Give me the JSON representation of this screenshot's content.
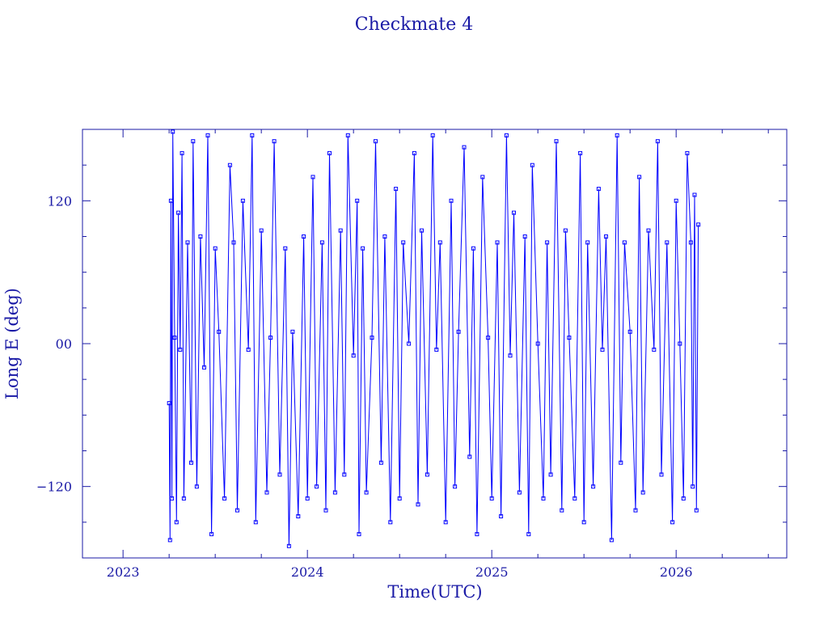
{
  "chart_data": {
    "type": "line",
    "title": "Checkmate 4",
    "xlabel": "Time(UTC)",
    "ylabel": "Long E (deg)",
    "x_unit": "year",
    "xlim": [
      2022.78,
      2026.6
    ],
    "ylim": [
      -180,
      180
    ],
    "x_ticks": [
      {
        "value": 2023,
        "label": "2023"
      },
      {
        "value": 2024,
        "label": "2024"
      },
      {
        "value": 2025,
        "label": "2025"
      },
      {
        "value": 2026,
        "label": "2026"
      }
    ],
    "y_ticks": [
      {
        "value": 120,
        "label": "120"
      },
      {
        "value": 0,
        "label": "00"
      },
      {
        "value": -120,
        "label": "−120"
      }
    ],
    "grid": false,
    "marker": "square",
    "color": "#0000ff",
    "axis_color": "#1a1aa6",
    "series": [
      {
        "points": [
          [
            2023.25,
            -50
          ],
          [
            2023.255,
            -165
          ],
          [
            2023.26,
            120
          ],
          [
            2023.265,
            -130
          ],
          [
            2023.27,
            178
          ],
          [
            2023.28,
            5
          ],
          [
            2023.29,
            -150
          ],
          [
            2023.3,
            110
          ],
          [
            2023.31,
            -5
          ],
          [
            2023.32,
            160
          ],
          [
            2023.33,
            -130
          ],
          [
            2023.35,
            85
          ],
          [
            2023.37,
            -100
          ],
          [
            2023.38,
            170
          ],
          [
            2023.4,
            -120
          ],
          [
            2023.42,
            90
          ],
          [
            2023.44,
            -20
          ],
          [
            2023.46,
            175
          ],
          [
            2023.48,
            -160
          ],
          [
            2023.5,
            80
          ],
          [
            2023.52,
            10
          ],
          [
            2023.55,
            -130
          ],
          [
            2023.58,
            150
          ],
          [
            2023.6,
            85
          ],
          [
            2023.62,
            -140
          ],
          [
            2023.65,
            120
          ],
          [
            2023.68,
            -5
          ],
          [
            2023.7,
            175
          ],
          [
            2023.72,
            -150
          ],
          [
            2023.75,
            95
          ],
          [
            2023.78,
            -125
          ],
          [
            2023.8,
            5
          ],
          [
            2023.82,
            170
          ],
          [
            2023.85,
            -110
          ],
          [
            2023.88,
            80
          ],
          [
            2023.9,
            -170
          ],
          [
            2023.92,
            10
          ],
          [
            2023.95,
            -145
          ],
          [
            2023.98,
            90
          ],
          [
            2024.0,
            -130
          ],
          [
            2024.03,
            140
          ],
          [
            2024.05,
            -120
          ],
          [
            2024.08,
            85
          ],
          [
            2024.1,
            -140
          ],
          [
            2024.12,
            160
          ],
          [
            2024.15,
            -125
          ],
          [
            2024.18,
            95
          ],
          [
            2024.2,
            -110
          ],
          [
            2024.22,
            175
          ],
          [
            2024.25,
            -10
          ],
          [
            2024.27,
            120
          ],
          [
            2024.28,
            -160
          ],
          [
            2024.3,
            80
          ],
          [
            2024.32,
            -125
          ],
          [
            2024.35,
            5
          ],
          [
            2024.37,
            170
          ],
          [
            2024.4,
            -100
          ],
          [
            2024.42,
            90
          ],
          [
            2024.45,
            -150
          ],
          [
            2024.48,
            130
          ],
          [
            2024.5,
            -130
          ],
          [
            2024.52,
            85
          ],
          [
            2024.55,
            0
          ],
          [
            2024.58,
            160
          ],
          [
            2024.6,
            -135
          ],
          [
            2024.62,
            95
          ],
          [
            2024.65,
            -110
          ],
          [
            2024.68,
            175
          ],
          [
            2024.7,
            -5
          ],
          [
            2024.72,
            85
          ],
          [
            2024.75,
            -150
          ],
          [
            2024.78,
            120
          ],
          [
            2024.8,
            -120
          ],
          [
            2024.82,
            10
          ],
          [
            2024.85,
            165
          ],
          [
            2024.88,
            -95
          ],
          [
            2024.9,
            80
          ],
          [
            2024.92,
            -160
          ],
          [
            2024.95,
            140
          ],
          [
            2024.98,
            5
          ],
          [
            2025.0,
            -130
          ],
          [
            2025.03,
            85
          ],
          [
            2025.05,
            -145
          ],
          [
            2025.08,
            175
          ],
          [
            2025.1,
            -10
          ],
          [
            2025.12,
            110
          ],
          [
            2025.15,
            -125
          ],
          [
            2025.18,
            90
          ],
          [
            2025.2,
            -160
          ],
          [
            2025.22,
            150
          ],
          [
            2025.25,
            0
          ],
          [
            2025.28,
            -130
          ],
          [
            2025.3,
            85
          ],
          [
            2025.32,
            -110
          ],
          [
            2025.35,
            170
          ],
          [
            2025.38,
            -140
          ],
          [
            2025.4,
            95
          ],
          [
            2025.42,
            5
          ],
          [
            2025.45,
            -130
          ],
          [
            2025.48,
            160
          ],
          [
            2025.5,
            -150
          ],
          [
            2025.52,
            85
          ],
          [
            2025.55,
            -120
          ],
          [
            2025.58,
            130
          ],
          [
            2025.6,
            -5
          ],
          [
            2025.62,
            90
          ],
          [
            2025.65,
            -165
          ],
          [
            2025.68,
            175
          ],
          [
            2025.7,
            -100
          ],
          [
            2025.72,
            85
          ],
          [
            2025.75,
            10
          ],
          [
            2025.78,
            -140
          ],
          [
            2025.8,
            140
          ],
          [
            2025.82,
            -125
          ],
          [
            2025.85,
            95
          ],
          [
            2025.88,
            -5
          ],
          [
            2025.9,
            170
          ],
          [
            2025.92,
            -110
          ],
          [
            2025.95,
            85
          ],
          [
            2025.98,
            -150
          ],
          [
            2026.0,
            120
          ],
          [
            2026.02,
            0
          ],
          [
            2026.04,
            -130
          ],
          [
            2026.06,
            160
          ],
          [
            2026.08,
            85
          ],
          [
            2026.09,
            -120
          ],
          [
            2026.1,
            125
          ],
          [
            2026.11,
            -140
          ],
          [
            2026.12,
            100
          ]
        ]
      }
    ]
  }
}
